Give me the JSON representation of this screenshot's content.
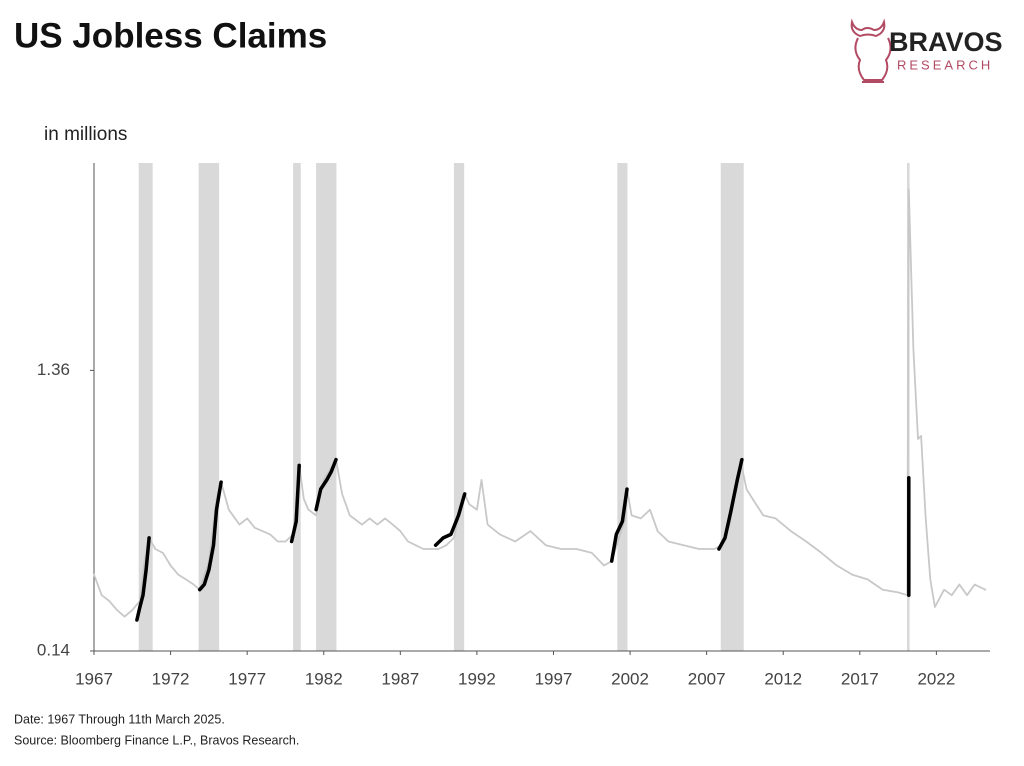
{
  "chart_data": {
    "type": "line",
    "title": "US Jobless Claims",
    "y_label": "in millions",
    "logo": {
      "name": "BRAVOS",
      "tagline": "RESEARCH"
    },
    "notes": [
      "Date: 1967 Through 11th March 2025.",
      "Source: Bloomberg Finance L.P., Bravos Research."
    ],
    "xlim": [
      1967,
      2025.5
    ],
    "ylim": [
      0.14,
      7.3
    ],
    "yscale": "log",
    "xticks": [
      1967,
      1972,
      1977,
      1982,
      1987,
      1992,
      1997,
      2002,
      2007,
      2012,
      2017,
      2022
    ],
    "yticks": [
      0.14,
      1.36
    ],
    "shade_color": "#d9d9d9",
    "shaded_ranges": [
      [
        1969.92,
        1970.83
      ],
      [
        1973.83,
        1975.17
      ],
      [
        1980.0,
        1980.5
      ],
      [
        1981.5,
        1982.83
      ],
      [
        1990.5,
        1991.17
      ],
      [
        2001.17,
        2001.83
      ],
      [
        2007.92,
        2009.42
      ],
      [
        2020.08,
        2020.25
      ]
    ],
    "series": [
      {
        "color": "#c8c8c8",
        "width": 1.8,
        "x": [
          1967.0,
          1967.5,
          1968.0,
          1968.5,
          1969.0,
          1969.5,
          1970.0,
          1970.3,
          1970.6,
          1971.0,
          1971.5,
          1972.0,
          1972.5,
          1973.0,
          1973.5,
          1973.9,
          1974.5,
          1975.0,
          1975.3,
          1975.8,
          1976.5,
          1977.0,
          1977.5,
          1978.0,
          1978.5,
          1979.0,
          1979.5,
          1980.0,
          1980.4,
          1980.7,
          1981.0,
          1981.5,
          1982.0,
          1982.5,
          1982.8,
          1983.2,
          1983.7,
          1984.5,
          1985.0,
          1985.5,
          1986.0,
          1986.5,
          1987.0,
          1987.5,
          1988.0,
          1988.5,
          1989.0,
          1989.5,
          1990.0,
          1990.5,
          1990.9,
          1991.2,
          1991.5,
          1992.0,
          1992.3,
          1992.7,
          1993.5,
          1994.5,
          1995.5,
          1996.5,
          1997.5,
          1998.5,
          1999.5,
          2000.3,
          2000.8,
          2001.2,
          2001.7,
          2001.8,
          2002.1,
          2002.7,
          2003.3,
          2003.8,
          2004.5,
          2005.5,
          2006.5,
          2007.5,
          2008.0,
          2008.5,
          2009.0,
          2009.2,
          2009.6,
          2010.0,
          2010.7,
          2011.5,
          2012.5,
          2013.5,
          2014.5,
          2015.5,
          2016.5,
          2017.5,
          2018.5,
          2019.5,
          2020.1,
          2020.2,
          2020.5,
          2020.8,
          2021.0,
          2021.3,
          2021.6,
          2021.9,
          2022.5,
          2023.0,
          2023.5,
          2024.0,
          2024.5,
          2025.2
        ],
        "values": [
          0.26,
          0.22,
          0.21,
          0.195,
          0.185,
          0.195,
          0.21,
          0.29,
          0.35,
          0.32,
          0.31,
          0.28,
          0.26,
          0.25,
          0.24,
          0.23,
          0.29,
          0.48,
          0.55,
          0.44,
          0.39,
          0.41,
          0.38,
          0.37,
          0.36,
          0.34,
          0.34,
          0.36,
          0.63,
          0.48,
          0.44,
          0.42,
          0.56,
          0.62,
          0.66,
          0.5,
          0.42,
          0.39,
          0.41,
          0.39,
          0.41,
          0.39,
          0.37,
          0.34,
          0.33,
          0.32,
          0.32,
          0.32,
          0.33,
          0.35,
          0.44,
          0.5,
          0.46,
          0.44,
          0.56,
          0.39,
          0.36,
          0.34,
          0.37,
          0.33,
          0.32,
          0.32,
          0.31,
          0.28,
          0.29,
          0.34,
          0.41,
          0.52,
          0.42,
          0.41,
          0.44,
          0.37,
          0.34,
          0.33,
          0.32,
          0.32,
          0.33,
          0.39,
          0.56,
          0.66,
          0.52,
          0.48,
          0.42,
          0.41,
          0.37,
          0.34,
          0.31,
          0.28,
          0.26,
          0.25,
          0.23,
          0.225,
          0.22,
          5.9,
          1.61,
          0.78,
          0.8,
          0.41,
          0.25,
          0.2,
          0.23,
          0.22,
          0.24,
          0.22,
          0.24,
          0.23
        ]
      },
      {
        "color": "#000000",
        "width": 3.5,
        "x": [
          1969.8,
          1970.0,
          1970.2,
          1970.4,
          1970.6,
          null,
          1973.9,
          1974.2,
          1974.5,
          1974.8,
          1975.0,
          1975.3,
          null,
          1979.9,
          1980.2,
          1980.4,
          null,
          1981.5,
          1981.8,
          1982.2,
          1982.5,
          1982.8,
          null,
          1989.3,
          1989.8,
          1990.3,
          1990.8,
          1991.2,
          null,
          2000.8,
          2001.1,
          2001.5,
          2001.8,
          null,
          2007.8,
          2008.2,
          2008.6,
          2009.0,
          2009.3,
          null,
          2020.2,
          2020.2
        ],
        "values": [
          0.18,
          0.2,
          0.22,
          0.27,
          0.35,
          null,
          0.23,
          0.24,
          0.27,
          0.33,
          0.44,
          0.55,
          null,
          0.34,
          0.4,
          0.63,
          null,
          0.44,
          0.52,
          0.56,
          0.6,
          0.66,
          null,
          0.33,
          0.35,
          0.36,
          0.42,
          0.5,
          null,
          0.29,
          0.36,
          0.4,
          0.52,
          null,
          0.32,
          0.35,
          0.44,
          0.56,
          0.66,
          null,
          0.22,
          0.57
        ]
      }
    ]
  }
}
